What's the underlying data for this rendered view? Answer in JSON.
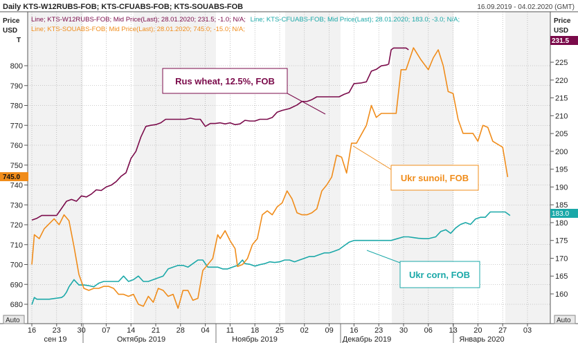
{
  "header": {
    "title": "Daily KTS-W12RUBS-FOB; KTS-CFUABS-FOB; KTS-SOUABS-FOB",
    "date_range": "16.09.2019 - 04.02.2020 (GMT)"
  },
  "legend": {
    "line1_a": "Line; KTS-W12RUBS-FOB; Mid Price(Last); 28.01.2020; 231.5; -1.0; N/A;",
    "line1_b": "Line; KTS-CFUABS-FOB; Mid Price(Last); 28.01.2020; 183.0; -3.0; N/A;",
    "line2": "Line; KTS-SOUABS-FOB; Mid Price(Last); 28.01.2020; 745.0; -15.0; N/A;"
  },
  "left_axis_title": [
    "Price",
    "USD",
    "T"
  ],
  "right_axis_title": [
    "Price",
    "USD"
  ],
  "auto_label": "Auto",
  "badges": {
    "sunoil": "745.0",
    "wheat": "231.5",
    "corn": "183.0"
  },
  "colors": {
    "wheat": "#7a0a4a",
    "sunoil": "#f08c1a",
    "corn": "#1aa8a8",
    "grid": "#9a9a9a",
    "shade": "#f2f2f2"
  },
  "annotations": {
    "wheat": "Rus wheat, 12.5%, FOB",
    "sunoil": "Ukr sunoil, FOB",
    "corn": "Ukr corn, FOB"
  },
  "chart_data": {
    "type": "line",
    "title": "Daily KTS-W12RUBS-FOB; KTS-CFUABS-FOB; KTS-SOUABS-FOB",
    "x_ticks": [
      "16",
      "23",
      "30",
      "07",
      "14",
      "21",
      "28",
      "04",
      "11",
      "18",
      "25",
      "02",
      "09",
      "16",
      "23",
      "30",
      "06",
      "13",
      "20",
      "27",
      "03"
    ],
    "month_labels": [
      "сен 19",
      "Октябрь 2019",
      "Ноябрь 2019",
      "Декабрь 2019",
      "Январь 2020"
    ],
    "x_range_days": [
      0,
      140
    ],
    "left_axis": {
      "label": "Price USD T",
      "range": [
        675,
        815
      ],
      "ticks": [
        680,
        690,
        700,
        710,
        720,
        730,
        740,
        750,
        760,
        770,
        780,
        790,
        800
      ]
    },
    "right_axis": {
      "label": "Price USD",
      "range": [
        155,
        231
      ],
      "ticks": [
        160,
        165,
        170,
        175,
        180,
        185,
        190,
        195,
        200,
        205,
        210,
        215,
        220,
        225
      ]
    },
    "series": [
      {
        "name": "Rus wheat, 12.5%, FOB",
        "axis": "right",
        "points": [
          [
            0,
            180.7
          ],
          [
            2,
            181.2
          ],
          [
            4,
            182
          ],
          [
            7,
            182
          ],
          [
            10,
            182
          ],
          [
            11,
            183
          ],
          [
            14,
            186
          ],
          [
            16,
            186.5
          ],
          [
            18,
            186
          ],
          [
            20,
            187.5
          ],
          [
            22,
            187.2
          ],
          [
            24,
            188
          ],
          [
            26,
            189.2
          ],
          [
            28,
            189
          ],
          [
            30,
            190
          ],
          [
            32,
            190.5
          ],
          [
            34,
            191.5
          ],
          [
            36,
            193
          ],
          [
            38,
            194
          ],
          [
            40,
            198
          ],
          [
            42,
            200
          ],
          [
            44,
            204
          ],
          [
            46,
            207
          ],
          [
            48,
            207.3
          ],
          [
            50,
            207.5
          ],
          [
            52,
            208
          ],
          [
            54,
            209
          ],
          [
            56,
            209
          ],
          [
            62,
            209
          ],
          [
            64,
            209.3
          ],
          [
            66,
            209
          ],
          [
            68,
            209
          ],
          [
            70,
            207
          ],
          [
            72,
            207.8
          ],
          [
            74,
            207.8
          ],
          [
            76,
            208
          ],
          [
            78,
            207.7
          ],
          [
            80,
            208
          ],
          [
            82,
            207.5
          ],
          [
            84,
            207.7
          ],
          [
            86,
            208.7
          ],
          [
            88,
            208.5
          ],
          [
            90,
            208.5
          ],
          [
            92,
            209
          ],
          [
            95,
            209
          ],
          [
            97,
            209.5
          ],
          [
            99,
            211
          ],
          [
            101,
            211.5
          ],
          [
            104,
            212
          ],
          [
            107,
            213
          ],
          [
            109,
            214
          ],
          [
            111,
            214
          ],
          [
            113,
            214.5
          ],
          [
            115,
            215.3
          ],
          [
            118,
            215.3
          ],
          [
            124,
            215.3
          ],
          [
            126,
            216
          ],
          [
            128,
            216.5
          ],
          [
            130,
            219
          ],
          [
            133,
            219.2
          ],
          [
            135,
            219.5
          ],
          [
            137,
            222.5
          ],
          [
            139,
            223
          ],
          [
            141,
            224
          ],
          [
            143,
            224.2
          ],
          [
            144,
            224.5
          ],
          [
            145,
            228.5
          ],
          [
            146,
            229
          ],
          [
            151,
            229
          ],
          [
            152,
            228.5
          ]
        ]
      },
      {
        "name": "Ukr sunoil, FOB",
        "axis": "left",
        "points": [
          [
            0,
            700
          ],
          [
            1,
            715
          ],
          [
            3,
            713
          ],
          [
            5,
            718
          ],
          [
            9,
            723
          ],
          [
            11,
            720
          ],
          [
            13,
            725
          ],
          [
            15,
            722
          ],
          [
            17,
            709
          ],
          [
            19,
            695
          ],
          [
            21,
            688
          ],
          [
            23,
            687
          ],
          [
            25,
            688
          ],
          [
            27,
            688
          ],
          [
            29,
            689
          ],
          [
            31,
            689
          ],
          [
            33,
            688
          ],
          [
            35,
            685
          ],
          [
            37,
            685
          ],
          [
            39,
            684
          ],
          [
            41,
            685
          ],
          [
            43,
            680
          ],
          [
            45,
            679
          ],
          [
            47,
            684
          ],
          [
            49,
            681
          ],
          [
            51,
            688
          ],
          [
            53,
            687
          ],
          [
            55,
            684
          ],
          [
            57,
            685
          ],
          [
            59,
            678
          ],
          [
            61,
            687
          ],
          [
            63,
            687
          ],
          [
            65,
            682
          ],
          [
            67,
            683
          ],
          [
            69,
            697
          ],
          [
            71,
            700
          ],
          [
            73,
            703
          ],
          [
            75,
            715
          ],
          [
            76,
            713
          ],
          [
            78,
            717
          ],
          [
            80,
            712
          ],
          [
            82,
            708
          ],
          [
            83,
            699
          ],
          [
            85,
            700
          ],
          [
            87,
            703
          ],
          [
            89,
            710
          ],
          [
            91,
            713
          ],
          [
            93,
            725
          ],
          [
            95,
            727
          ],
          [
            97,
            725
          ],
          [
            99,
            729
          ],
          [
            101,
            731
          ],
          [
            103,
            737
          ],
          [
            105,
            733
          ],
          [
            107,
            726
          ],
          [
            109,
            725
          ],
          [
            111,
            725
          ],
          [
            113,
            726
          ],
          [
            115,
            728
          ],
          [
            117,
            737
          ],
          [
            119,
            740
          ],
          [
            121,
            744
          ],
          [
            123,
            755
          ],
          [
            125,
            754
          ],
          [
            127,
            746
          ],
          [
            129,
            761
          ],
          [
            131,
            761
          ],
          [
            135,
            770
          ],
          [
            137,
            780
          ],
          [
            139,
            774
          ],
          [
            141,
            776
          ],
          [
            147,
            776
          ],
          [
            149,
            798
          ],
          [
            151,
            798
          ],
          [
            154,
            809
          ],
          [
            157,
            803
          ],
          [
            160,
            798
          ],
          [
            162,
            804
          ],
          [
            164,
            808
          ],
          [
            166,
            800
          ],
          [
            168,
            787
          ],
          [
            170,
            786
          ],
          [
            172,
            773
          ],
          [
            174,
            766
          ],
          [
            176,
            766
          ],
          [
            178,
            766
          ],
          [
            180,
            762
          ],
          [
            182,
            770
          ],
          [
            184,
            769
          ],
          [
            186,
            762
          ],
          [
            190,
            759
          ],
          [
            192,
            744
          ]
        ]
      },
      {
        "name": "Ukr corn, FOB",
        "axis": "right",
        "points": [
          [
            0,
            157
          ],
          [
            1,
            159
          ],
          [
            2,
            158.5
          ],
          [
            4,
            158.5
          ],
          [
            7,
            158.5
          ],
          [
            10,
            158.8
          ],
          [
            12,
            159
          ],
          [
            13,
            159.5
          ],
          [
            14,
            160.5
          ],
          [
            15,
            162
          ],
          [
            17,
            164
          ],
          [
            19,
            162.5
          ],
          [
            21,
            162.5
          ],
          [
            23,
            162.3
          ],
          [
            25,
            162
          ],
          [
            27,
            163
          ],
          [
            29,
            163.5
          ],
          [
            31,
            163.5
          ],
          [
            33,
            163.5
          ],
          [
            35,
            163.5
          ],
          [
            37,
            165
          ],
          [
            39,
            163.5
          ],
          [
            41,
            164
          ],
          [
            43,
            165
          ],
          [
            45,
            163.5
          ],
          [
            47,
            163.5
          ],
          [
            49,
            164
          ],
          [
            51,
            164.5
          ],
          [
            53,
            165
          ],
          [
            55,
            167
          ],
          [
            57,
            167.5
          ],
          [
            59,
            168
          ],
          [
            61,
            168
          ],
          [
            63,
            167.5
          ],
          [
            65,
            168.5
          ],
          [
            67,
            169.5
          ],
          [
            69,
            169.5
          ],
          [
            71,
            167.5
          ],
          [
            73,
            167.5
          ],
          [
            75,
            167.5
          ],
          [
            77,
            167
          ],
          [
            79,
            167
          ],
          [
            81,
            167.5
          ],
          [
            83,
            168
          ],
          [
            85,
            169.5
          ],
          [
            86,
            168.5
          ],
          [
            88,
            168.3
          ],
          [
            90,
            167.8
          ],
          [
            92,
            168.2
          ],
          [
            94,
            168.5
          ],
          [
            96,
            169
          ],
          [
            98,
            168.8
          ],
          [
            100,
            169
          ],
          [
            102,
            169.5
          ],
          [
            104,
            169.5
          ],
          [
            106,
            169
          ],
          [
            108,
            169.5
          ],
          [
            110,
            170
          ],
          [
            112,
            170.5
          ],
          [
            114,
            170.5
          ],
          [
            116,
            171
          ],
          [
            118,
            171.5
          ],
          [
            120,
            171.5
          ],
          [
            122,
            172
          ],
          [
            124,
            172.5
          ],
          [
            126,
            173.5
          ],
          [
            128,
            174.5
          ],
          [
            130,
            175
          ],
          [
            135,
            175
          ],
          [
            140,
            175
          ],
          [
            145,
            175
          ],
          [
            150,
            176
          ],
          [
            152,
            176
          ],
          [
            154,
            175.8
          ],
          [
            156,
            175.6
          ],
          [
            158,
            175.5
          ],
          [
            160,
            175.5
          ],
          [
            163,
            176
          ],
          [
            165,
            177.5
          ],
          [
            167,
            178
          ],
          [
            169,
            177
          ],
          [
            171,
            178.5
          ],
          [
            173,
            179.5
          ],
          [
            175,
            180
          ],
          [
            177,
            179.5
          ],
          [
            179,
            181
          ],
          [
            181,
            181.5
          ],
          [
            183,
            181.5
          ],
          [
            185,
            183
          ],
          [
            187,
            183
          ],
          [
            189,
            183
          ],
          [
            191,
            183
          ],
          [
            193,
            182
          ]
        ]
      }
    ]
  }
}
